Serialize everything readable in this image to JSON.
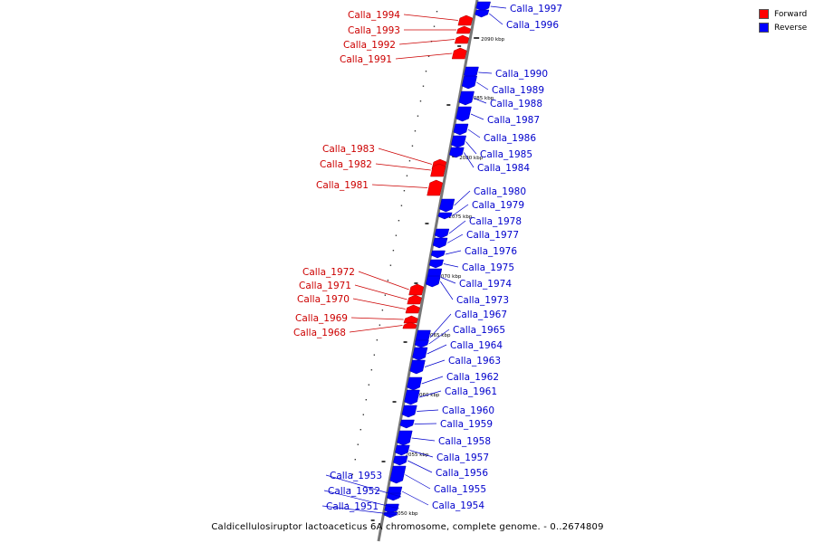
{
  "colors": {
    "forward": "#ff0000",
    "reverse": "#0000ff",
    "forward_label": "#cc0000",
    "reverse_label": "#0000cc",
    "axis": "#888888"
  },
  "legend": {
    "forward": "Forward",
    "reverse": "Reverse"
  },
  "caption": "Caldicellulosiruptor lactoaceticus 6A chromosome, complete genome. - 0..2674809",
  "ticks": [
    "2050 kbp",
    "2055 kbp",
    "2060 kbp",
    "2065 kbp",
    "2070 kbp",
    "2075 kbp",
    "2080 kbp",
    "2085 kbp",
    "2090 kbp"
  ],
  "genes": [
    {
      "name": "Calla_1997",
      "strand": "reverse"
    },
    {
      "name": "Calla_1996",
      "strand": "reverse"
    },
    {
      "name": "Calla_1994",
      "strand": "forward"
    },
    {
      "name": "Calla_1993",
      "strand": "forward"
    },
    {
      "name": "Calla_1992",
      "strand": "forward"
    },
    {
      "name": "Calla_1991",
      "strand": "forward"
    },
    {
      "name": "Calla_1990",
      "strand": "reverse"
    },
    {
      "name": "Calla_1989",
      "strand": "reverse"
    },
    {
      "name": "Calla_1988",
      "strand": "reverse"
    },
    {
      "name": "Calla_1987",
      "strand": "reverse"
    },
    {
      "name": "Calla_1986",
      "strand": "reverse"
    },
    {
      "name": "Calla_1985",
      "strand": "reverse"
    },
    {
      "name": "Calla_1984",
      "strand": "reverse"
    },
    {
      "name": "Calla_1983",
      "strand": "forward"
    },
    {
      "name": "Calla_1982",
      "strand": "forward"
    },
    {
      "name": "Calla_1981",
      "strand": "forward"
    },
    {
      "name": "Calla_1980",
      "strand": "reverse"
    },
    {
      "name": "Calla_1979",
      "strand": "reverse"
    },
    {
      "name": "Calla_1978",
      "strand": "reverse"
    },
    {
      "name": "Calla_1977",
      "strand": "reverse"
    },
    {
      "name": "Calla_1976",
      "strand": "reverse"
    },
    {
      "name": "Calla_1975",
      "strand": "reverse"
    },
    {
      "name": "Calla_1974",
      "strand": "reverse"
    },
    {
      "name": "Calla_1973",
      "strand": "reverse"
    },
    {
      "name": "Calla_1972",
      "strand": "forward"
    },
    {
      "name": "Calla_1971",
      "strand": "forward"
    },
    {
      "name": "Calla_1970",
      "strand": "forward"
    },
    {
      "name": "Calla_1969",
      "strand": "forward"
    },
    {
      "name": "Calla_1968",
      "strand": "forward"
    },
    {
      "name": "Calla_1967",
      "strand": "reverse"
    },
    {
      "name": "Calla_1965",
      "strand": "reverse"
    },
    {
      "name": "Calla_1964",
      "strand": "reverse"
    },
    {
      "name": "Calla_1963",
      "strand": "reverse"
    },
    {
      "name": "Calla_1962",
      "strand": "reverse"
    },
    {
      "name": "Calla_1961",
      "strand": "reverse"
    },
    {
      "name": "Calla_1960",
      "strand": "reverse"
    },
    {
      "name": "Calla_1959",
      "strand": "reverse"
    },
    {
      "name": "Calla_1958",
      "strand": "reverse"
    },
    {
      "name": "Calla_1957",
      "strand": "reverse"
    },
    {
      "name": "Calla_1956",
      "strand": "reverse"
    },
    {
      "name": "Calla_1955",
      "strand": "reverse"
    },
    {
      "name": "Calla_1954",
      "strand": "reverse"
    },
    {
      "name": "Calla_1953",
      "strand": "reverse"
    },
    {
      "name": "Calla_1952",
      "strand": "reverse"
    },
    {
      "name": "Calla_1951",
      "strand": "reverse"
    }
  ]
}
